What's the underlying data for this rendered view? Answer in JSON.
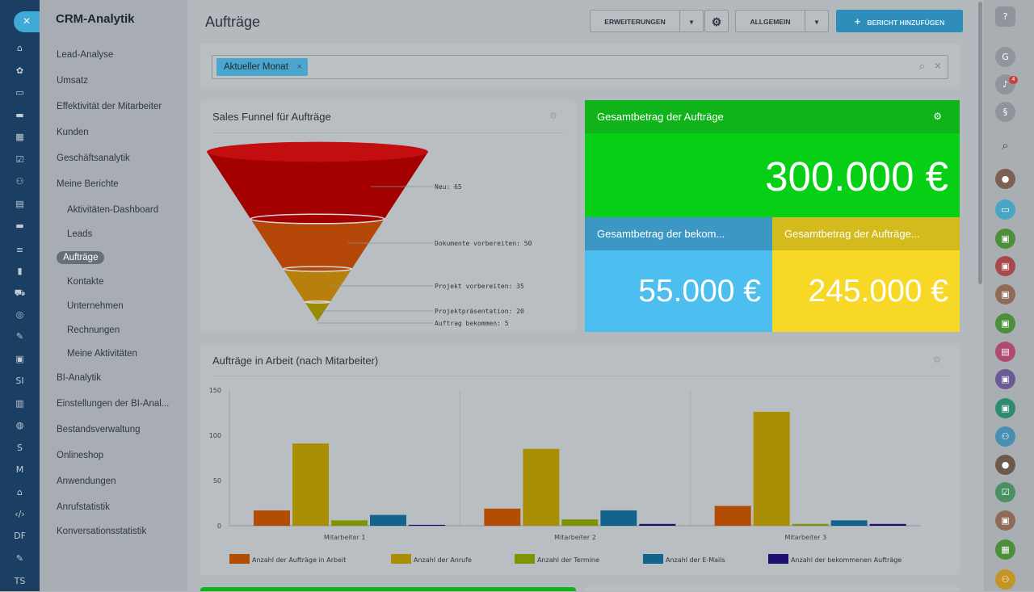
{
  "rail": {
    "close_glyph": "×",
    "items": [
      {
        "icon": "home-icon",
        "glyph": "⌂"
      },
      {
        "icon": "puzzle-icon",
        "glyph": "✿"
      },
      {
        "icon": "inbox-icon",
        "glyph": "▭"
      },
      {
        "icon": "chat-icon",
        "glyph": "▬"
      },
      {
        "icon": "calendar-icon",
        "glyph": "▦"
      },
      {
        "icon": "tasks-icon",
        "glyph": "☑"
      },
      {
        "icon": "group-icon",
        "glyph": "⚇"
      },
      {
        "icon": "document-icon",
        "glyph": "▤"
      },
      {
        "icon": "drive-icon",
        "glyph": "▬"
      },
      {
        "icon": "filter-icon",
        "glyph": "≡"
      },
      {
        "icon": "analytics-icon",
        "glyph": "▮"
      },
      {
        "icon": "shop-icon",
        "glyph": "⛟"
      },
      {
        "icon": "target-icon",
        "glyph": "◎"
      },
      {
        "icon": "sign-icon",
        "glyph": "✎"
      },
      {
        "icon": "contact-card-icon",
        "glyph": "▣"
      },
      {
        "icon": "si-icon",
        "glyph": "SI"
      },
      {
        "icon": "report-icon",
        "glyph": "▥"
      },
      {
        "icon": "robot-icon",
        "glyph": "◍"
      },
      {
        "icon": "s-icon",
        "glyph": "S"
      },
      {
        "icon": "m-icon",
        "glyph": "M"
      },
      {
        "icon": "bank-icon",
        "glyph": "⌂"
      },
      {
        "icon": "code-icon",
        "glyph": "‹/›"
      },
      {
        "icon": "df-icon",
        "glyph": "DF"
      },
      {
        "icon": "edit-icon",
        "glyph": "✎"
      },
      {
        "icon": "ts-icon",
        "glyph": "TS"
      }
    ]
  },
  "sidebar": {
    "title": "CRM-Analytik",
    "items": [
      {
        "label": "Lead-Analyse",
        "level": 0
      },
      {
        "label": "Umsatz",
        "level": 0
      },
      {
        "label": "Effektivität der Mitarbeiter",
        "level": 0
      },
      {
        "label": "Kunden",
        "level": 0
      },
      {
        "label": "Geschäftsanalytik",
        "level": 0
      },
      {
        "label": "Meine Berichte",
        "level": 0
      },
      {
        "label": "Aktivitäten-Dashboard",
        "level": 1
      },
      {
        "label": "Leads",
        "level": 1
      },
      {
        "label": "Aufträge",
        "level": 1,
        "active": true
      },
      {
        "label": "Kontakte",
        "level": 1
      },
      {
        "label": "Unternehmen",
        "level": 1
      },
      {
        "label": "Rechnungen",
        "level": 1
      },
      {
        "label": "Meine Aktivitäten",
        "level": 1
      },
      {
        "label": "BI-Analytik",
        "level": 0
      },
      {
        "label": "Einstellungen der BI-Anal...",
        "level": 0
      },
      {
        "label": "Bestandsverwaltung",
        "level": 0
      },
      {
        "label": "Onlineshop",
        "level": 0
      },
      {
        "label": "Anwendungen",
        "level": 0
      },
      {
        "label": "Anrufstatistik",
        "level": 0
      },
      {
        "label": "Konversationsstatistik",
        "level": 0
      }
    ]
  },
  "header": {
    "title": "Aufträge",
    "extensions_label": "ERWEITERUNGEN",
    "general_label": "ALLGEMEIN",
    "add_report_label": "BERICHT HINZUFÜGEN"
  },
  "filter": {
    "chip_label": "Aktueller Monat",
    "chip_remove": "×",
    "clear_glyph": "×"
  },
  "funnel": {
    "title": "Sales Funnel für Aufträge",
    "chart_data": {
      "type": "funnel",
      "stages": [
        {
          "label": "Neu",
          "value": 65,
          "color": "#a30000"
        },
        {
          "label": "Dokumente vorbereiten",
          "value": 50,
          "color": "#b54708"
        },
        {
          "label": "Projekt vorbereiten",
          "value": 35,
          "color": "#b87f0d"
        },
        {
          "label": "Projektpräsentation",
          "value": 20,
          "color": "#9a8b02"
        },
        {
          "label": "Auftrag bekommen",
          "value": 5,
          "color": "#7a7a10"
        }
      ]
    }
  },
  "kpi": {
    "total_title": "Gesamtbetrag der Aufträge",
    "total_value": "300.000 €",
    "received_title": "Gesamtbetrag der bekom...",
    "received_value": "55.000 €",
    "open_title": "Gesamtbetrag der Aufträge...",
    "open_value": "245.000 €"
  },
  "bar_panel": {
    "title": "Aufträge in Arbeit (nach Mitarbeiter)",
    "chart_data": {
      "type": "bar",
      "categories": [
        "Mitarbeiter 1",
        "Mitarbeiter 2",
        "Mitarbeiter 3"
      ],
      "ylim": [
        0,
        150
      ],
      "yticks": [
        0,
        50,
        100,
        150
      ],
      "series": [
        {
          "name": "Anzahl der Aufträge in Arbeit",
          "color": "#b44d04",
          "values": [
            17,
            19,
            22
          ]
        },
        {
          "name": "Anzahl der Anrufe",
          "color": "#aa8e03",
          "values": [
            91,
            85,
            126
          ]
        },
        {
          "name": "Anzahl der Termine",
          "color": "#7f9403",
          "values": [
            6,
            7,
            2
          ]
        },
        {
          "name": "Anzahl der E-Mails",
          "color": "#13648d",
          "values": [
            12,
            17,
            6
          ]
        },
        {
          "name": "Anzahl der bekommenen Aufträge",
          "color": "#1e0f70",
          "values": [
            1,
            2,
            2
          ]
        }
      ]
    }
  },
  "right_rail": {
    "notification_count": "4",
    "items": [
      {
        "icon": "help-icon",
        "glyph": "?",
        "color": "#8f959a"
      },
      {
        "icon": "crm-g-icon",
        "glyph": "G",
        "color": "#8f959a"
      },
      {
        "icon": "bell-icon",
        "glyph": "♪",
        "color": "#8f959a"
      },
      {
        "icon": "support-icon",
        "glyph": "§",
        "color": "#8f959a"
      },
      {
        "icon": "search-icon",
        "glyph": "⌕",
        "color": "transparent"
      },
      {
        "icon": "avatar-icon",
        "glyph": "●",
        "color": "#7c6150"
      },
      {
        "icon": "chat-bubble-icon",
        "glyph": "▭",
        "color": "#4aa4c3"
      },
      {
        "icon": "lock-icon",
        "glyph": "▣",
        "color": "#4b8f3b"
      },
      {
        "icon": "lock-icon",
        "glyph": "▣",
        "color": "#a8484c"
      },
      {
        "icon": "lock-icon",
        "glyph": "▣",
        "color": "#8f6a58"
      },
      {
        "icon": "lock-icon",
        "glyph": "▣",
        "color": "#4b8f3b"
      },
      {
        "icon": "id-card-icon",
        "glyph": "▤",
        "color": "#b04a6f"
      },
      {
        "icon": "lock-icon",
        "glyph": "▣",
        "color": "#6b5a93"
      },
      {
        "icon": "lock-icon",
        "glyph": "▣",
        "color": "#2f8a73"
      },
      {
        "icon": "people-icon",
        "glyph": "⚇",
        "color": "#4a8fb1"
      },
      {
        "icon": "avatar-icon",
        "glyph": "●",
        "color": "#6c5b4c"
      },
      {
        "icon": "task-check-icon",
        "glyph": "☑",
        "color": "#4b8f63"
      },
      {
        "icon": "lock-icon",
        "glyph": "▣",
        "color": "#8f6a58"
      },
      {
        "icon": "calendar-icon",
        "glyph": "▦",
        "color": "#4b8f3b"
      },
      {
        "icon": "people-icon",
        "glyph": "⚇",
        "color": "#c59426"
      }
    ]
  }
}
